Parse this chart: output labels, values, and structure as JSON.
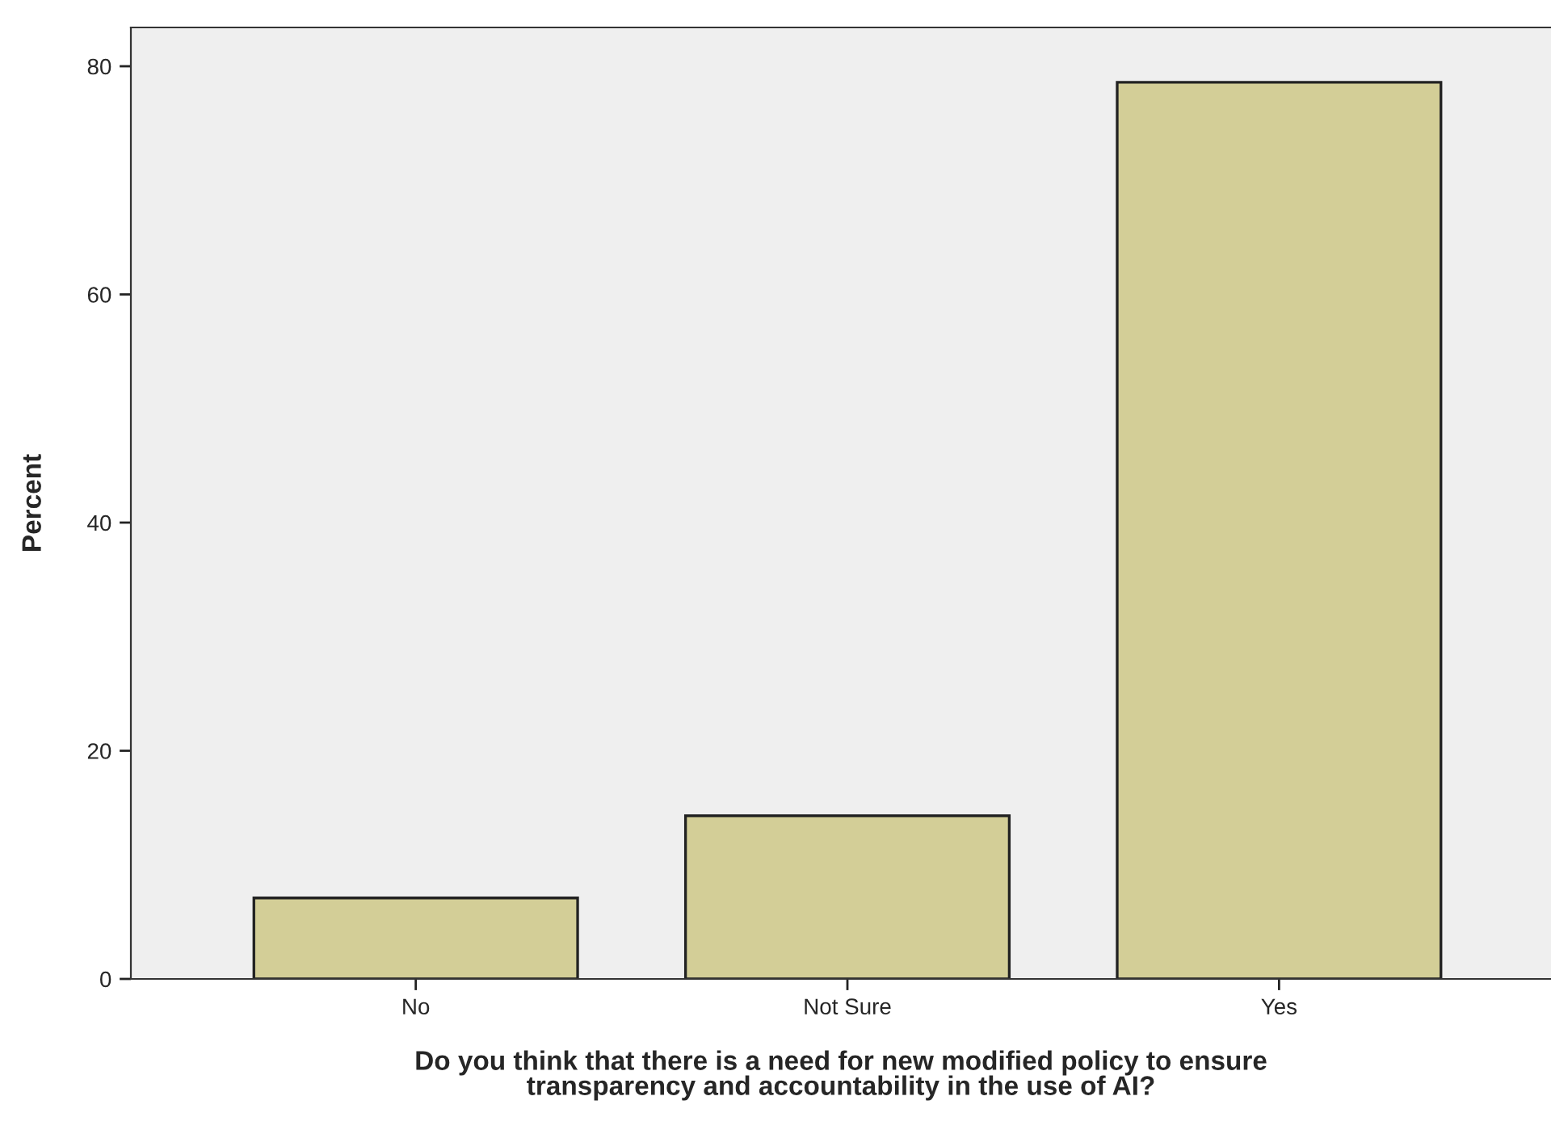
{
  "chart_data": {
    "type": "bar",
    "xlabel": "Do you think that there is a need for new modified policy to ensure\ntransparency and accountability in the use of AI?",
    "ylabel": "Percent",
    "categories": [
      "No",
      "Not Sure",
      "Yes"
    ],
    "values": [
      7.1,
      14.3,
      78.6
    ],
    "color": "#d3ce97",
    "ylim": [
      0,
      83.4
    ],
    "yticks": [
      0,
      20,
      40,
      60,
      80
    ],
    "grid": false
  }
}
